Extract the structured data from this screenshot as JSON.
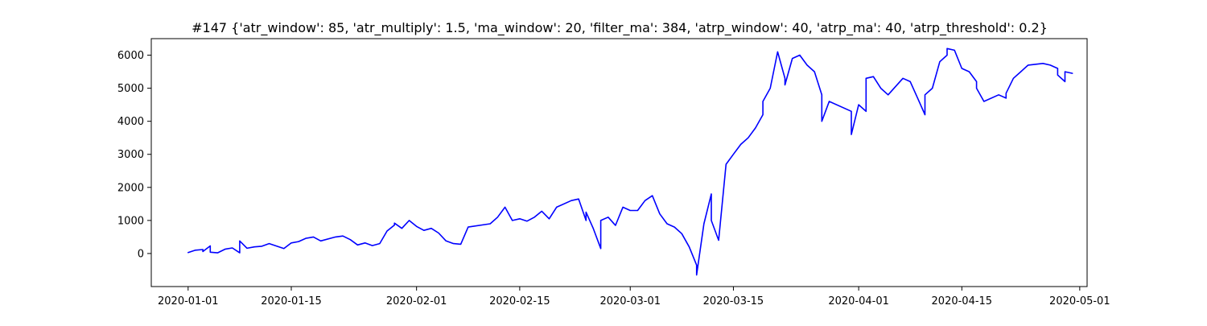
{
  "chart_data": {
    "type": "line",
    "title": "#147 {'atr_window': 85, 'atr_multiply': 1.5, 'ma_window': 20, 'filter_ma': 384, 'atrp_window': 40, 'atrp_ma': 40, 'atrp_threshold': 0.2}",
    "xlabel": "",
    "ylabel": "",
    "grid": false,
    "legend": "none",
    "xlim": [
      "2019-12-27",
      "2020-05-02"
    ],
    "ylim": [
      -1000,
      6500
    ],
    "x_ticks": [
      {
        "date": "2020-01-01",
        "label": "2020-01-01"
      },
      {
        "date": "2020-01-15",
        "label": "2020-01-15"
      },
      {
        "date": "2020-02-01",
        "label": "2020-02-01"
      },
      {
        "date": "2020-02-15",
        "label": "2020-02-15"
      },
      {
        "date": "2020-03-01",
        "label": "2020-03-01"
      },
      {
        "date": "2020-03-15",
        "label": "2020-03-15"
      },
      {
        "date": "2020-04-01",
        "label": "2020-04-01"
      },
      {
        "date": "2020-04-15",
        "label": "2020-04-15"
      },
      {
        "date": "2020-05-01",
        "label": "2020-05-01"
      }
    ],
    "y_ticks": [
      {
        "value": 0,
        "label": "0"
      },
      {
        "value": 1000,
        "label": "1000"
      },
      {
        "value": 2000,
        "label": "2000"
      },
      {
        "value": 3000,
        "label": "3000"
      },
      {
        "value": 4000,
        "label": "4000"
      },
      {
        "value": 5000,
        "label": "5000"
      },
      {
        "value": 6000,
        "label": "6000"
      }
    ],
    "series": [
      {
        "color": "#0000ff",
        "x": [
          "2020-01-01",
          "2020-01-02",
          "2020-01-03",
          "2020-01-03",
          "2020-01-04",
          "2020-01-04",
          "2020-01-05",
          "2020-01-06",
          "2020-01-07",
          "2020-01-08",
          "2020-01-08",
          "2020-01-09",
          "2020-01-10",
          "2020-01-11",
          "2020-01-12",
          "2020-01-14",
          "2020-01-15",
          "2020-01-16",
          "2020-01-17",
          "2020-01-18",
          "2020-01-19",
          "2020-01-21",
          "2020-01-22",
          "2020-01-23",
          "2020-01-24",
          "2020-01-25",
          "2020-01-26",
          "2020-01-27",
          "2020-01-28",
          "2020-01-29",
          "2020-01-29",
          "2020-01-30",
          "2020-01-31",
          "2020-02-01",
          "2020-02-02",
          "2020-02-03",
          "2020-02-04",
          "2020-02-05",
          "2020-02-06",
          "2020-02-07",
          "2020-02-08",
          "2020-02-11",
          "2020-02-12",
          "2020-02-13",
          "2020-02-14",
          "2020-02-15",
          "2020-02-16",
          "2020-02-17",
          "2020-02-18",
          "2020-02-19",
          "2020-02-20",
          "2020-02-22",
          "2020-02-23",
          "2020-02-24",
          "2020-02-24",
          "2020-02-25",
          "2020-02-26",
          "2020-02-26",
          "2020-02-27",
          "2020-02-28",
          "2020-02-29",
          "2020-03-01",
          "2020-03-02",
          "2020-03-03",
          "2020-03-04",
          "2020-03-05",
          "2020-03-06",
          "2020-03-07",
          "2020-03-08",
          "2020-03-09",
          "2020-03-10",
          "2020-03-10",
          "2020-03-11",
          "2020-03-12",
          "2020-03-12",
          "2020-03-13",
          "2020-03-14",
          "2020-03-15",
          "2020-03-16",
          "2020-03-17",
          "2020-03-18",
          "2020-03-19",
          "2020-03-19",
          "2020-03-20",
          "2020-03-21",
          "2020-03-22",
          "2020-03-22",
          "2020-03-23",
          "2020-03-24",
          "2020-03-25",
          "2020-03-26",
          "2020-03-27",
          "2020-03-27",
          "2020-03-28",
          "2020-03-31",
          "2020-03-31",
          "2020-04-01",
          "2020-04-02",
          "2020-04-02",
          "2020-04-03",
          "2020-04-04",
          "2020-04-05",
          "2020-04-07",
          "2020-04-08",
          "2020-04-09",
          "2020-04-10",
          "2020-04-10",
          "2020-04-11",
          "2020-04-12",
          "2020-04-13",
          "2020-04-13",
          "2020-04-14",
          "2020-04-15",
          "2020-04-16",
          "2020-04-17",
          "2020-04-17",
          "2020-04-18",
          "2020-04-20",
          "2020-04-21",
          "2020-04-21",
          "2020-04-22",
          "2020-04-23",
          "2020-04-24",
          "2020-04-26",
          "2020-04-27",
          "2020-04-28",
          "2020-04-28",
          "2020-04-29",
          "2020-04-29",
          "2020-04-30"
        ],
        "y": [
          30,
          100,
          120,
          60,
          230,
          40,
          20,
          130,
          170,
          20,
          380,
          160,
          200,
          220,
          300,
          150,
          320,
          360,
          460,
          500,
          380,
          500,
          530,
          420,
          260,
          320,
          240,
          300,
          680,
          860,
          920,
          760,
          1000,
          820,
          700,
          760,
          620,
          380,
          300,
          280,
          800,
          900,
          1100,
          1400,
          1000,
          1050,
          980,
          1100,
          1280,
          1050,
          1400,
          1600,
          1650,
          1000,
          1250,
          750,
          150,
          1000,
          1100,
          850,
          1400,
          1300,
          1300,
          1600,
          1750,
          1200,
          900,
          800,
          600,
          200,
          -350,
          -650,
          900,
          1800,
          1000,
          400,
          2700,
          3000,
          3300,
          3500,
          3800,
          4200,
          4600,
          5000,
          6100,
          5300,
          5100,
          5900,
          6000,
          5700,
          5500,
          4800,
          4000,
          4600,
          4300,
          3600,
          4500,
          4300,
          5300,
          5350,
          5000,
          4800,
          5300,
          5200,
          4700,
          4200,
          4800,
          5000,
          5800,
          6000,
          6200,
          6150,
          5600,
          5500,
          5200,
          5000,
          4600,
          4800,
          4700,
          4850,
          5300,
          5500,
          5700,
          5750,
          5700,
          5600,
          5400,
          5200,
          5500,
          5450
        ]
      }
    ]
  }
}
